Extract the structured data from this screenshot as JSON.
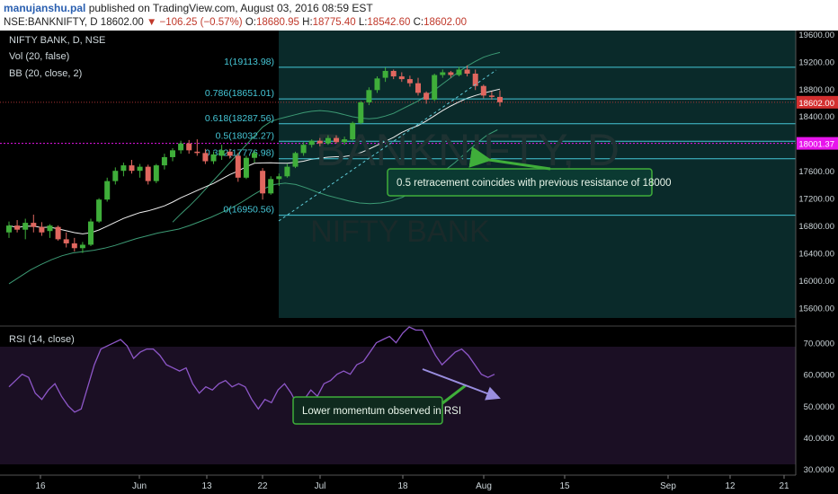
{
  "header": {
    "author": "manujanshu.pal",
    "published": "published on TradingView.com, August 03, 2016 08:59 EST",
    "symbol": "NSE:BANKNIFTY, D",
    "last": "18602.00",
    "change": "−106.25 (−0.57%)",
    "o_label": "O:",
    "o_value": "18680.95",
    "h_label": "H:",
    "h_value": "18775.40",
    "l_label": "L:",
    "l_value": "18542.60",
    "c_label": "C:",
    "c_value": "18602.00"
  },
  "legend": {
    "title": "NIFTY BANK, D, NSE",
    "vol": "Vol (20, false)",
    "bb": "BB (20, close, 2)",
    "rsi": "RSI (14, close)"
  },
  "watermark": {
    "line1": "BANKNIFTY, D",
    "line2": "NIFTY BANK"
  },
  "colors": {
    "up": "#3fae3a",
    "down": "#e0675f",
    "fib": "#45c6d6",
    "bb": "#3c9a74",
    "rsi": "#8e57c9",
    "price_tag": "#d32f2f",
    "magenta": "#e815ec"
  },
  "chart_data": [
    {
      "type": "candlestick",
      "y_ticks": [
        "19600.00",
        "19200.00",
        "18800.00",
        "18400.00",
        "18000.00",
        "17600.00",
        "17200.00",
        "16800.00",
        "16400.00",
        "16000.00",
        "15600.00"
      ],
      "ylim": [
        15450,
        19650
      ],
      "x_ticks": [
        "16",
        "Jun",
        "13",
        "22",
        "Jul",
        "18",
        "Aug",
        "15",
        "Sep",
        "12",
        "21"
      ],
      "price_tag": "18602.00",
      "resistance_tag": "18001.37",
      "fib_levels": [
        {
          "label": "1(19113.98)",
          "value": 19113.98
        },
        {
          "label": "0.786(18651.01)",
          "value": 18651.01
        },
        {
          "label": "0.618(18287.56)",
          "value": 18287.56
        },
        {
          "label": "0.5(18032.27)",
          "value": 18032.27
        },
        {
          "label": "0.382(17776.98)",
          "value": 17776.98
        },
        {
          "label": "0(16950.56)",
          "value": 16950.56
        }
      ],
      "annotation": "0.5 retracement coincides with previous resistance of 18000",
      "candles": [
        [
          16700,
          16860,
          16620,
          16800
        ],
        [
          16800,
          16880,
          16700,
          16740
        ],
        [
          16740,
          16900,
          16600,
          16840
        ],
        [
          16840,
          16960,
          16700,
          16780
        ],
        [
          16780,
          16850,
          16650,
          16700
        ],
        [
          16720,
          16820,
          16620,
          16800
        ],
        [
          16780,
          16800,
          16580,
          16600
        ],
        [
          16600,
          16700,
          16480,
          16540
        ],
        [
          16540,
          16620,
          16420,
          16470
        ],
        [
          16470,
          16560,
          16400,
          16520
        ],
        [
          16520,
          16900,
          16500,
          16860
        ],
        [
          16860,
          17200,
          16840,
          17180
        ],
        [
          17180,
          17500,
          17150,
          17450
        ],
        [
          17450,
          17650,
          17400,
          17600
        ],
        [
          17600,
          17720,
          17520,
          17680
        ],
        [
          17680,
          17760,
          17560,
          17600
        ],
        [
          17600,
          17700,
          17500,
          17660
        ],
        [
          17660,
          17690,
          17400,
          17450
        ],
        [
          17450,
          17700,
          17420,
          17680
        ],
        [
          17680,
          17850,
          17620,
          17800
        ],
        [
          17800,
          17930,
          17740,
          17900
        ],
        [
          17900,
          18040,
          17850,
          18000
        ],
        [
          18000,
          18050,
          17850,
          17900
        ],
        [
          17880,
          18060,
          17820,
          17860
        ],
        [
          17860,
          17920,
          17700,
          17740
        ],
        [
          17740,
          17880,
          17700,
          17840
        ],
        [
          17820,
          17980,
          17760,
          17900
        ],
        [
          17880,
          17920,
          17780,
          17820
        ],
        [
          17820,
          17860,
          17440,
          17500
        ],
        [
          17500,
          17820,
          17480,
          17790
        ],
        [
          17790,
          17900,
          17720,
          17860
        ],
        [
          17600,
          17640,
          17180,
          17270
        ],
        [
          17270,
          17520,
          17250,
          17480
        ],
        [
          17480,
          17560,
          17380,
          17520
        ],
        [
          17520,
          17700,
          17500,
          17660
        ],
        [
          17660,
          17880,
          17640,
          17860
        ],
        [
          17860,
          18020,
          17820,
          17980
        ],
        [
          17980,
          18060,
          17940,
          18040
        ],
        [
          18040,
          18080,
          17960,
          18000
        ],
        [
          18000,
          18120,
          17980,
          18080
        ],
        [
          18080,
          18120,
          18000,
          18020
        ],
        [
          18020,
          18100,
          17980,
          18060
        ],
        [
          18060,
          18320,
          18040,
          18300
        ],
        [
          18300,
          18620,
          18280,
          18600
        ],
        [
          18600,
          18820,
          18560,
          18780
        ],
        [
          18780,
          18980,
          18740,
          18950
        ],
        [
          18960,
          19110,
          18900,
          19060
        ],
        [
          19060,
          19080,
          18940,
          18980
        ],
        [
          18980,
          19040,
          18900,
          18940
        ],
        [
          18940,
          18990,
          18830,
          18880
        ],
        [
          18880,
          18960,
          18700,
          18740
        ],
        [
          18740,
          18760,
          18580,
          18640
        ],
        [
          18640,
          19020,
          18620,
          19000
        ],
        [
          19000,
          19080,
          18960,
          19040
        ],
        [
          19040,
          19060,
          18960,
          19000
        ],
        [
          19000,
          19120,
          18980,
          19080
        ],
        [
          19080,
          19140,
          18980,
          19020
        ],
        [
          19020,
          19080,
          18780,
          18840
        ],
        [
          18840,
          18860,
          18660,
          18700
        ],
        [
          18700,
          18760,
          18640,
          18680
        ],
        [
          18680,
          18775.4,
          18542.6,
          18602
        ]
      ],
      "bb_upper": [
        16850,
        16970,
        17080,
        17200,
        17330,
        17460,
        17590,
        17720,
        17850,
        17980,
        18110,
        18240,
        18320,
        18360,
        18390,
        18420,
        18450,
        18470,
        18480,
        18470,
        18450,
        18420,
        18390,
        18370,
        18360,
        18370,
        18400,
        18440,
        18500,
        18560,
        18620,
        18700,
        18780,
        18870,
        18960,
        19050,
        19130,
        19200,
        19260,
        19300,
        19330
      ],
      "bb_upper_x0": 20,
      "bb_lower": [
        15950,
        16050,
        16150,
        16230,
        16300,
        16360,
        16400,
        16420,
        16440,
        16470,
        16510,
        16560,
        16610,
        16650,
        16690,
        16720,
        16750,
        16800,
        16860,
        16920,
        16990,
        17060,
        17150,
        17250,
        17340,
        17400,
        17420,
        17400,
        17350,
        17290,
        17240,
        17200,
        17160,
        17130,
        17120,
        17130,
        17160,
        17210,
        17290,
        17380,
        17480,
        17600,
        17720,
        17860,
        18000,
        18120,
        18200
      ],
      "bb_lower_x0": 15,
      "bb_mid_from": 0
    },
    {
      "type": "line",
      "title": "RSI (14, close)",
      "y_ticks": [
        "70.0000",
        "60.0000",
        "50.0000",
        "40.0000",
        "30.0000"
      ],
      "ylim": [
        28,
        75
      ],
      "values": [
        56,
        58,
        60,
        59,
        54,
        52,
        55,
        57,
        53,
        50,
        48,
        49,
        56,
        63,
        68,
        69,
        70,
        71,
        69,
        65,
        67,
        68,
        68,
        66,
        63,
        62,
        61,
        62,
        57,
        54,
        56,
        55,
        57,
        58,
        56,
        57,
        56,
        52,
        49,
        52,
        51,
        55,
        57,
        54,
        50,
        52,
        55,
        53,
        57,
        58,
        60,
        61,
        60,
        63,
        64,
        67,
        70,
        71,
        72,
        70,
        73,
        75,
        74,
        74,
        70,
        66,
        63,
        65,
        67,
        68,
        66,
        63,
        60,
        59,
        60
      ],
      "annotation": "Lower momentum observed in RSI"
    }
  ]
}
